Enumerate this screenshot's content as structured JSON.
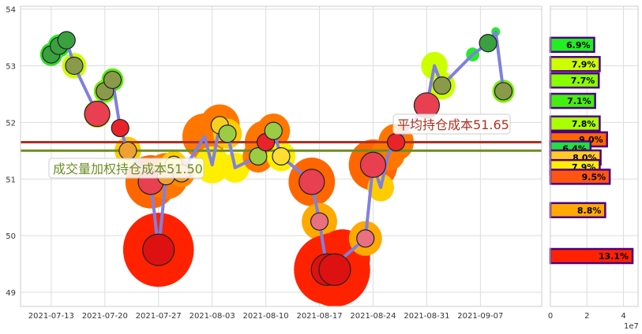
{
  "chart_data": [
    {
      "type": "line",
      "ylim": [
        48.75,
        54.05
      ],
      "xlim": [
        "2021-07-09",
        "2021-09-15"
      ],
      "grid": true,
      "x_tick_labels": [
        "2021-07-13",
        "2021-07-20",
        "2021-07-27",
        "2021-08-03",
        "2021-08-10",
        "2021-08-17",
        "2021-08-24",
        "2021-08-31",
        "2021-09-07"
      ],
      "y_tick_labels": [
        "49",
        "50",
        "51",
        "52",
        "53",
        "54"
      ],
      "line_color": "#8080e0",
      "points": [
        {
          "date": "2021-07-13",
          "price": 53.2,
          "marker": "peas",
          "halo": "#33dd22",
          "halo_size": 1
        },
        {
          "date": "2021-07-14",
          "price": 53.35,
          "marker": "peas",
          "halo": "#22ee22",
          "halo_size": 1
        },
        {
          "date": "2021-07-15",
          "price": 53.45,
          "marker": "peas",
          "halo": "#22ee22",
          "halo_size": 0.8
        },
        {
          "date": "2021-07-16",
          "price": 53.0,
          "marker": "pear",
          "halo": "#ccff00",
          "halo_size": 1.1
        },
        {
          "date": "2021-07-19",
          "price": 52.15,
          "marker": "watermelon",
          "halo": "#aaff00",
          "halo_size": 1.2
        },
        {
          "date": "2021-07-20",
          "price": 52.55,
          "marker": "pear",
          "halo": "#77ee00",
          "halo_size": 1
        },
        {
          "date": "2021-07-21",
          "price": 52.75,
          "marker": "pear",
          "halo": "#55ee00",
          "halo_size": 1
        },
        {
          "date": "2021-07-22",
          "price": 51.9,
          "marker": "strawberry",
          "halo": "#ffffff",
          "halo_size": 0
        },
        {
          "date": "2021-07-23",
          "price": 51.5,
          "marker": "carrot",
          "halo": "#ffcc00",
          "halo_size": 1.2
        },
        {
          "date": "2021-07-26",
          "price": 50.95,
          "marker": "watermelon",
          "halo": "#ff6600",
          "halo_size": 2.3
        },
        {
          "date": "2021-07-27",
          "price": 49.75,
          "marker": "apple",
          "halo": "#ff2200",
          "halo_size": 3.2
        },
        {
          "date": "2021-07-28",
          "price": 51.05,
          "marker": "carrot",
          "halo": "#ff7700",
          "halo_size": 2
        },
        {
          "date": "2021-07-29",
          "price": 51.25,
          "marker": "banana",
          "halo": "#ffcc00",
          "halo_size": 1.2
        },
        {
          "date": "2021-07-30",
          "price": 51.1,
          "marker": "carrot",
          "halo": "#ff8800",
          "halo_size": 1.2
        },
        {
          "date": "2021-08-02",
          "price": 51.75,
          "marker": "none",
          "halo": "#ff7700",
          "halo_size": 2
        },
        {
          "date": "2021-08-03",
          "price": 51.25,
          "marker": "none",
          "halo": "#ffee00",
          "halo_size": 1.6
        },
        {
          "date": "2021-08-04",
          "price": 51.95,
          "marker": "corn",
          "halo": "#ff7700",
          "halo_size": 1.8
        },
        {
          "date": "2021-08-05",
          "price": 51.8,
          "marker": "kiwi",
          "halo": "#ffcc00",
          "halo_size": 1.3
        },
        {
          "date": "2021-08-06",
          "price": 51.2,
          "marker": "none",
          "halo": "#ffee00",
          "halo_size": 1.3
        },
        {
          "date": "2021-08-09",
          "price": 51.4,
          "marker": "kiwi",
          "halo": "#ff7700",
          "halo_size": 1.4
        },
        {
          "date": "2021-08-10",
          "price": 51.65,
          "marker": "strawberry",
          "halo": "#ff7700",
          "halo_size": 1.9
        },
        {
          "date": "2021-08-11",
          "price": 51.85,
          "marker": "kiwi",
          "halo": "#ff7700",
          "halo_size": 1.5
        },
        {
          "date": "2021-08-12",
          "price": 51.4,
          "marker": "banana",
          "halo": "#ffee00",
          "halo_size": 1.3
        },
        {
          "date": "2021-08-16",
          "price": 50.95,
          "marker": "watermelon",
          "halo": "#ff6600",
          "halo_size": 2.1
        },
        {
          "date": "2021-08-17",
          "price": 50.25,
          "marker": "radish",
          "halo": "#ffaa00",
          "halo_size": 1.6
        },
        {
          "date": "2021-08-18",
          "price": 49.4,
          "marker": "apple",
          "halo": "#ff2200",
          "halo_size": 3
        },
        {
          "date": "2021-08-19",
          "price": 49.4,
          "marker": "apple",
          "halo": "#ff2200",
          "halo_size": 3.2
        },
        {
          "date": "2021-08-20",
          "price": 49.6,
          "marker": "none",
          "halo": "#ff2200",
          "halo_size": 2.5
        },
        {
          "date": "2021-08-23",
          "price": 49.95,
          "marker": "radish",
          "halo": "#ffaa00",
          "halo_size": 1.5
        },
        {
          "date": "2021-08-24",
          "price": 51.25,
          "marker": "watermelon",
          "halo": "#ff6600",
          "halo_size": 2.2
        },
        {
          "date": "2021-08-25",
          "price": 50.85,
          "marker": "none",
          "halo": "#ffcc00",
          "halo_size": 1.2
        },
        {
          "date": "2021-08-26",
          "price": 51.45,
          "marker": "none",
          "halo": "#ff7700",
          "halo_size": 1.5
        },
        {
          "date": "2021-08-27",
          "price": 51.65,
          "marker": "strawberry",
          "halo": "#ff7700",
          "halo_size": 1.6
        },
        {
          "date": "2021-08-31",
          "price": 52.3,
          "marker": "watermelon",
          "halo": "#ccff00",
          "halo_size": 0.6
        },
        {
          "date": "2021-09-01",
          "price": 53.0,
          "marker": "none",
          "halo": "#ccff00",
          "halo_size": 1.2
        },
        {
          "date": "2021-09-02",
          "price": 52.65,
          "marker": "pear",
          "halo": "#ccff00",
          "halo_size": 1.2
        },
        {
          "date": "2021-09-06",
          "price": 53.2,
          "marker": "none",
          "halo": "#22ee22",
          "halo_size": 0.6
        },
        {
          "date": "2021-09-08",
          "price": 53.4,
          "marker": "peas",
          "halo": "#22ee22",
          "halo_size": 0.8
        },
        {
          "date": "2021-09-09",
          "price": 53.6,
          "marker": "none",
          "halo": "#22ee22",
          "halo_size": 0.4
        },
        {
          "date": "2021-09-10",
          "price": 52.55,
          "marker": "pear",
          "halo": "#77ee00",
          "halo_size": 1
        }
      ],
      "hlines": [
        {
          "value": 51.65,
          "color": "#b03020",
          "label": "平均持仓成本51.65",
          "label_color": "#b03020"
        },
        {
          "value": 51.5,
          "color": "#6b8e23",
          "label": "成交量加权持仓成本51.50",
          "label_color": "#6b8e23"
        }
      ]
    },
    {
      "type": "bar",
      "orientation": "horizontal",
      "xlim": [
        0,
        4.8
      ],
      "x_tick_labels": [
        "0",
        "2",
        "4"
      ],
      "x_scale_label": "1e7",
      "grid": true,
      "bars": [
        {
          "price": 53.37,
          "volume": 2.4,
          "label": "6.9%",
          "color": "#22ee22"
        },
        {
          "price": 53.03,
          "volume": 2.7,
          "label": "7.9%",
          "color": "#ccff00"
        },
        {
          "price": 52.74,
          "volume": 2.65,
          "label": "7.7%",
          "color": "#88ff00"
        },
        {
          "price": 52.38,
          "volume": 2.45,
          "label": "7.1%",
          "color": "#44ee11"
        },
        {
          "price": 51.98,
          "volume": 2.7,
          "label": "7.8%",
          "color": "#aaff00"
        },
        {
          "price": 51.7,
          "volume": 3.1,
          "label": "9.0%",
          "color": "#ff6600"
        },
        {
          "price": 51.54,
          "volume": 2.2,
          "label": "6.4%",
          "color": "#22dd44"
        },
        {
          "price": 51.38,
          "volume": 2.75,
          "label": "8.0%",
          "color": "#ffcc22"
        },
        {
          "price": 51.21,
          "volume": 2.7,
          "label": "7.9%",
          "color": "#ffee00"
        },
        {
          "price": 51.04,
          "volume": 3.25,
          "label": "9.5%",
          "color": "#ff5511"
        },
        {
          "price": 50.45,
          "volume": 3.0,
          "label": "8.8%",
          "color": "#ffaa00"
        },
        {
          "price": 49.64,
          "volume": 4.5,
          "label": "13.1%",
          "color": "#ff2200"
        }
      ]
    }
  ]
}
